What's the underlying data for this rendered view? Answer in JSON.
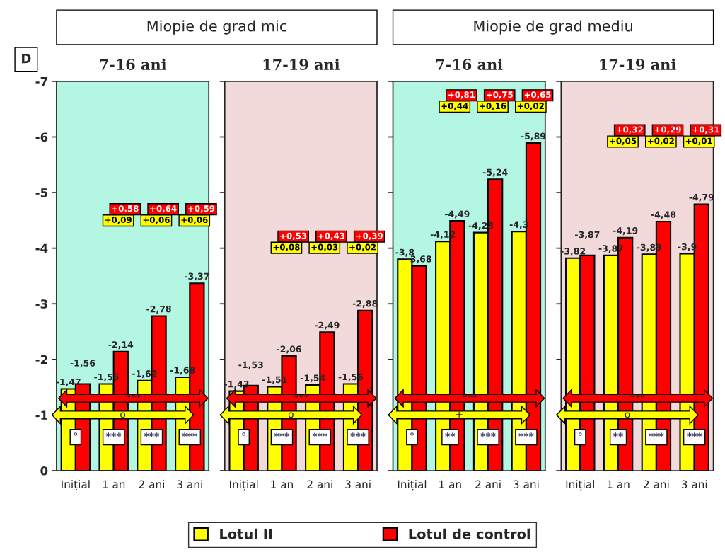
{
  "chart_data": [
    {
      "type": "bar",
      "title": "Miopie de grad mic",
      "subtitle": "7-16 ani",
      "ylabel": "D",
      "categories": [
        "Inițial",
        "1 an",
        "2 ani",
        "3 ani"
      ],
      "series": [
        {
          "name": "Lotul II",
          "color": "#ffff00",
          "values": [
            -1.47,
            -1.56,
            -1.62,
            -1.68
          ],
          "value_labels": [
            "-1,47",
            "-1,56",
            "-1,62",
            "-1,68"
          ]
        },
        {
          "name": "Lotul de control",
          "color": "#ff0000",
          "values": [
            -1.56,
            -2.14,
            -2.78,
            -3.37
          ],
          "value_labels": [
            "-1,56",
            "-2,14",
            "-2,78",
            "-3,37"
          ]
        }
      ],
      "ylim": [
        0,
        -7
      ],
      "yticks": [
        0,
        -1,
        -2,
        -3,
        -4,
        -5,
        -6,
        -7
      ],
      "bands": [
        {
          "axis": "y",
          "from": 0,
          "to": -7,
          "color": "#b3f7e3"
        }
      ],
      "legend": "bottom",
      "annotations": [
        "+0.58",
        "+0,64",
        "+0,59",
        "+0,09",
        "+0,06",
        "+0,06",
        "°",
        "***",
        "***",
        "***",
        "***",
        "o"
      ]
    },
    {
      "type": "bar",
      "subtitle": "17-19 ani",
      "categories": [
        "Inițial",
        "1 an",
        "2 ani",
        "3 ani"
      ],
      "series": [
        {
          "color": "#ffff00",
          "values": [
            -1.43,
            -1.51,
            -1.54,
            -1.56
          ],
          "value_labels": [
            "-1,43",
            "-1,51",
            "-1,54",
            "-1,56"
          ]
        },
        {
          "color": "#ff0000",
          "values": [
            -1.53,
            -2.06,
            -2.49,
            -2.88
          ],
          "value_labels": [
            "-1,53",
            "-2,06",
            "-2,49",
            "-2,88"
          ]
        }
      ],
      "ylim": [
        0,
        -7
      ],
      "yticks": [
        0,
        -1,
        -2,
        -3,
        -4,
        -5,
        -6,
        -7
      ],
      "tick_labels": "x",
      "bands": [
        {
          "axis": "y",
          "from": 0,
          "to": -7,
          "color": "#f2dada"
        }
      ],
      "annotations": [
        "+0,53",
        "+0,43",
        "+0,39",
        "+0,08",
        "+0,03",
        "+0,02",
        "°",
        "***",
        "***",
        "***",
        "***",
        "o"
      ]
    },
    {
      "type": "bar",
      "title": "Miopie de grad mediu",
      "subtitle": "7-16 ani",
      "categories": [
        "Inițial",
        "1 an",
        "2 ani",
        "3 ani"
      ],
      "series": [
        {
          "color": "#ffff00",
          "values": [
            -3.8,
            -4.12,
            -4.28,
            -4.3
          ],
          "value_labels": [
            "-3,8",
            "-4,12",
            "-4,28",
            "-4,3"
          ]
        },
        {
          "color": "#ff0000",
          "values": [
            -3.68,
            -4.49,
            -5.24,
            -5.89
          ],
          "value_labels": [
            "-3,68",
            "-4,49",
            "-5,24",
            "-5,89"
          ]
        }
      ],
      "ylim": [
        0,
        -7
      ],
      "yticks": [
        0,
        -1,
        -2,
        -3,
        -4,
        -5,
        -6,
        -7
      ],
      "tick_labels": "x",
      "bands": [
        {
          "axis": "y",
          "from": 0,
          "to": -7,
          "color": "#b3f7e3"
        }
      ],
      "annotations": [
        "+0,81",
        "+0,75",
        "+0,65",
        "+0,44",
        "+0,16",
        "+0,02",
        "°",
        "**",
        "***",
        "***",
        "***",
        "+"
      ]
    },
    {
      "type": "bar",
      "subtitle": "17-19 ani",
      "categories": [
        "Inițial",
        "1 an",
        "2 ani",
        "3 ani"
      ],
      "series": [
        {
          "color": "#ffff00",
          "values": [
            -3.82,
            -3.87,
            -3.89,
            -3.9
          ],
          "value_labels": [
            "-3,82",
            "-3,87",
            "-3,89",
            "-3,9"
          ]
        },
        {
          "color": "#ff0000",
          "values": [
            -3.87,
            -4.19,
            -4.48,
            -4.79
          ],
          "value_labels": [
            "-3,87",
            "-4,19",
            "-4,48",
            "-4,79"
          ]
        }
      ],
      "ylim": [
        0,
        -7
      ],
      "yticks": [
        0,
        -1,
        -2,
        -3,
        -4,
        -5,
        -6,
        -7
      ],
      "tick_labels": "x",
      "bands": [
        {
          "axis": "y",
          "from": 0,
          "to": -7,
          "color": "#f2dada"
        }
      ],
      "annotations": [
        "+0,32",
        "+0,29",
        "+0,31",
        "+0,05",
        "+0,02",
        "+0,01",
        "°",
        "**",
        "***",
        "***",
        "***",
        "o"
      ]
    }
  ]
}
